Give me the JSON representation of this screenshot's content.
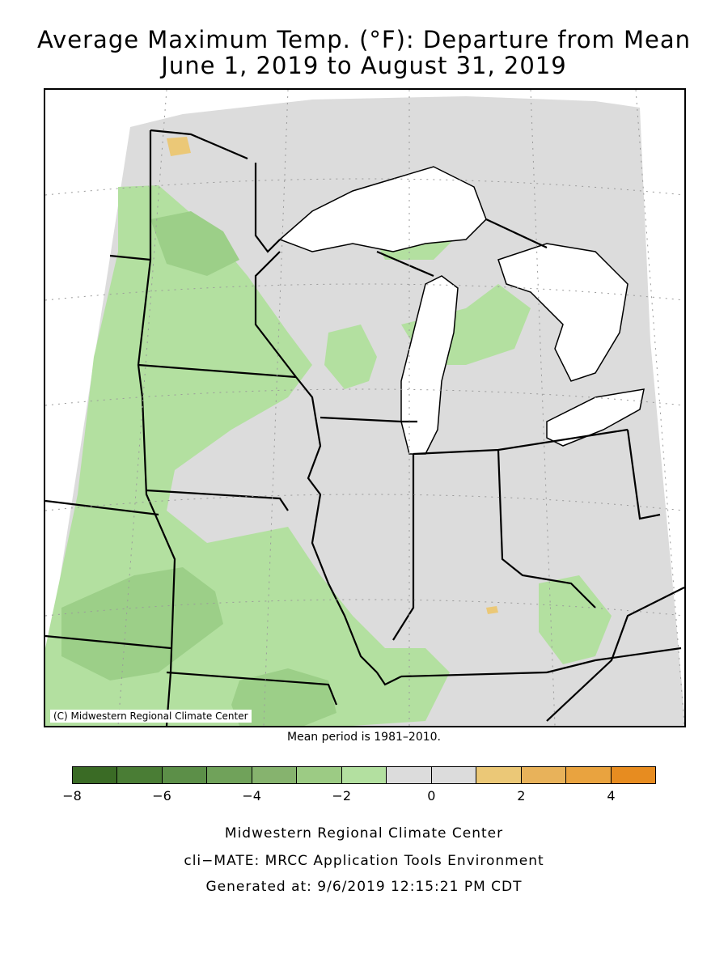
{
  "title": {
    "line1": "Average Maximum Temp. (°F): Departure from Mean",
    "line2": "June 1, 2019 to August 31, 2019"
  },
  "map": {
    "copyright": "(C) Midwestern Regional Climate Center",
    "colors": {
      "water": "#ffffff",
      "near_normal": "#dcdcdc",
      "minus_1_to_2": "#b3e0a0",
      "minus_2_to_3": "#9ccf88",
      "minus_3_to_4": "#86bf72",
      "warm_1_to_2": "#ebc877"
    },
    "region": "Midwest United States"
  },
  "mean_note": "Mean period is 1981–2010.",
  "legend": {
    "colors": [
      "#3a6b25",
      "#4a7d35",
      "#5c8f48",
      "#70a25a",
      "#86b36e",
      "#9ccb84",
      "#b3e0a0",
      "#dcdcdc",
      "#dcdcdc",
      "#ebc877",
      "#e8b25a",
      "#e9a33f",
      "#e78c20"
    ],
    "tick_labels": [
      "−8",
      "−6",
      "−4",
      "−2",
      "0",
      "2",
      "4"
    ],
    "tick_values": [
      -8,
      -6,
      -4,
      -2,
      0,
      2,
      4
    ],
    "min": -8,
    "max": 5
  },
  "footer": {
    "line1": "Midwestern Regional Climate Center",
    "line2": "cli−MATE: MRCC Application Tools Environment",
    "line3": "Generated at: 9/6/2019 12:15:21 PM CDT"
  }
}
